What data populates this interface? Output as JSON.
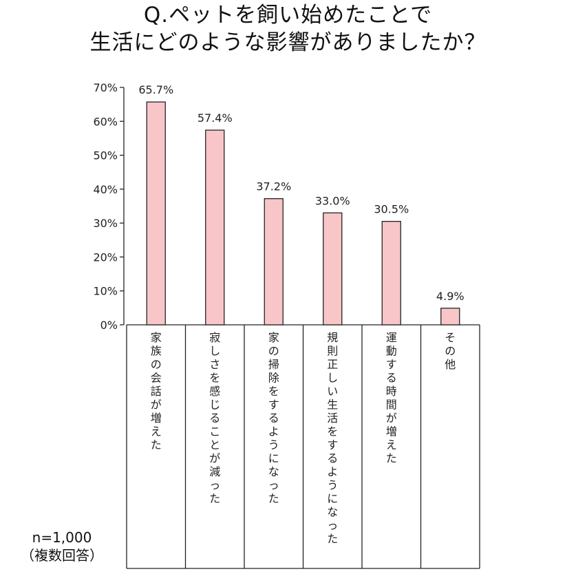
{
  "chart_data": {
    "type": "bar",
    "title_lines": [
      "Q.ペットを飼い始めたことで",
      "生活にどのような影響がありましたか？"
    ],
    "categories": [
      "家族の会話が増えた",
      "寂しさを感じることが減った",
      "家の掃除をするようになった",
      "規則正しい生活をするようになった",
      "運動する時間が増えた",
      "その他"
    ],
    "values": [
      65.7,
      57.4,
      37.2,
      33.0,
      30.5,
      4.9
    ],
    "value_labels": [
      "65.7%",
      "57.4%",
      "37.2%",
      "33.0%",
      "30.5%",
      "4.9%"
    ],
    "y_ticks": [
      "0%",
      "10%",
      "20%",
      "30%",
      "40%",
      "50%",
      "60%",
      "70%"
    ],
    "ylim": [
      0,
      70
    ],
    "bar_color": "#f8c6c8",
    "bar_stroke": "#222222",
    "grid": false
  },
  "sample": {
    "n": "n=1,000",
    "note": "（複数回答）"
  }
}
